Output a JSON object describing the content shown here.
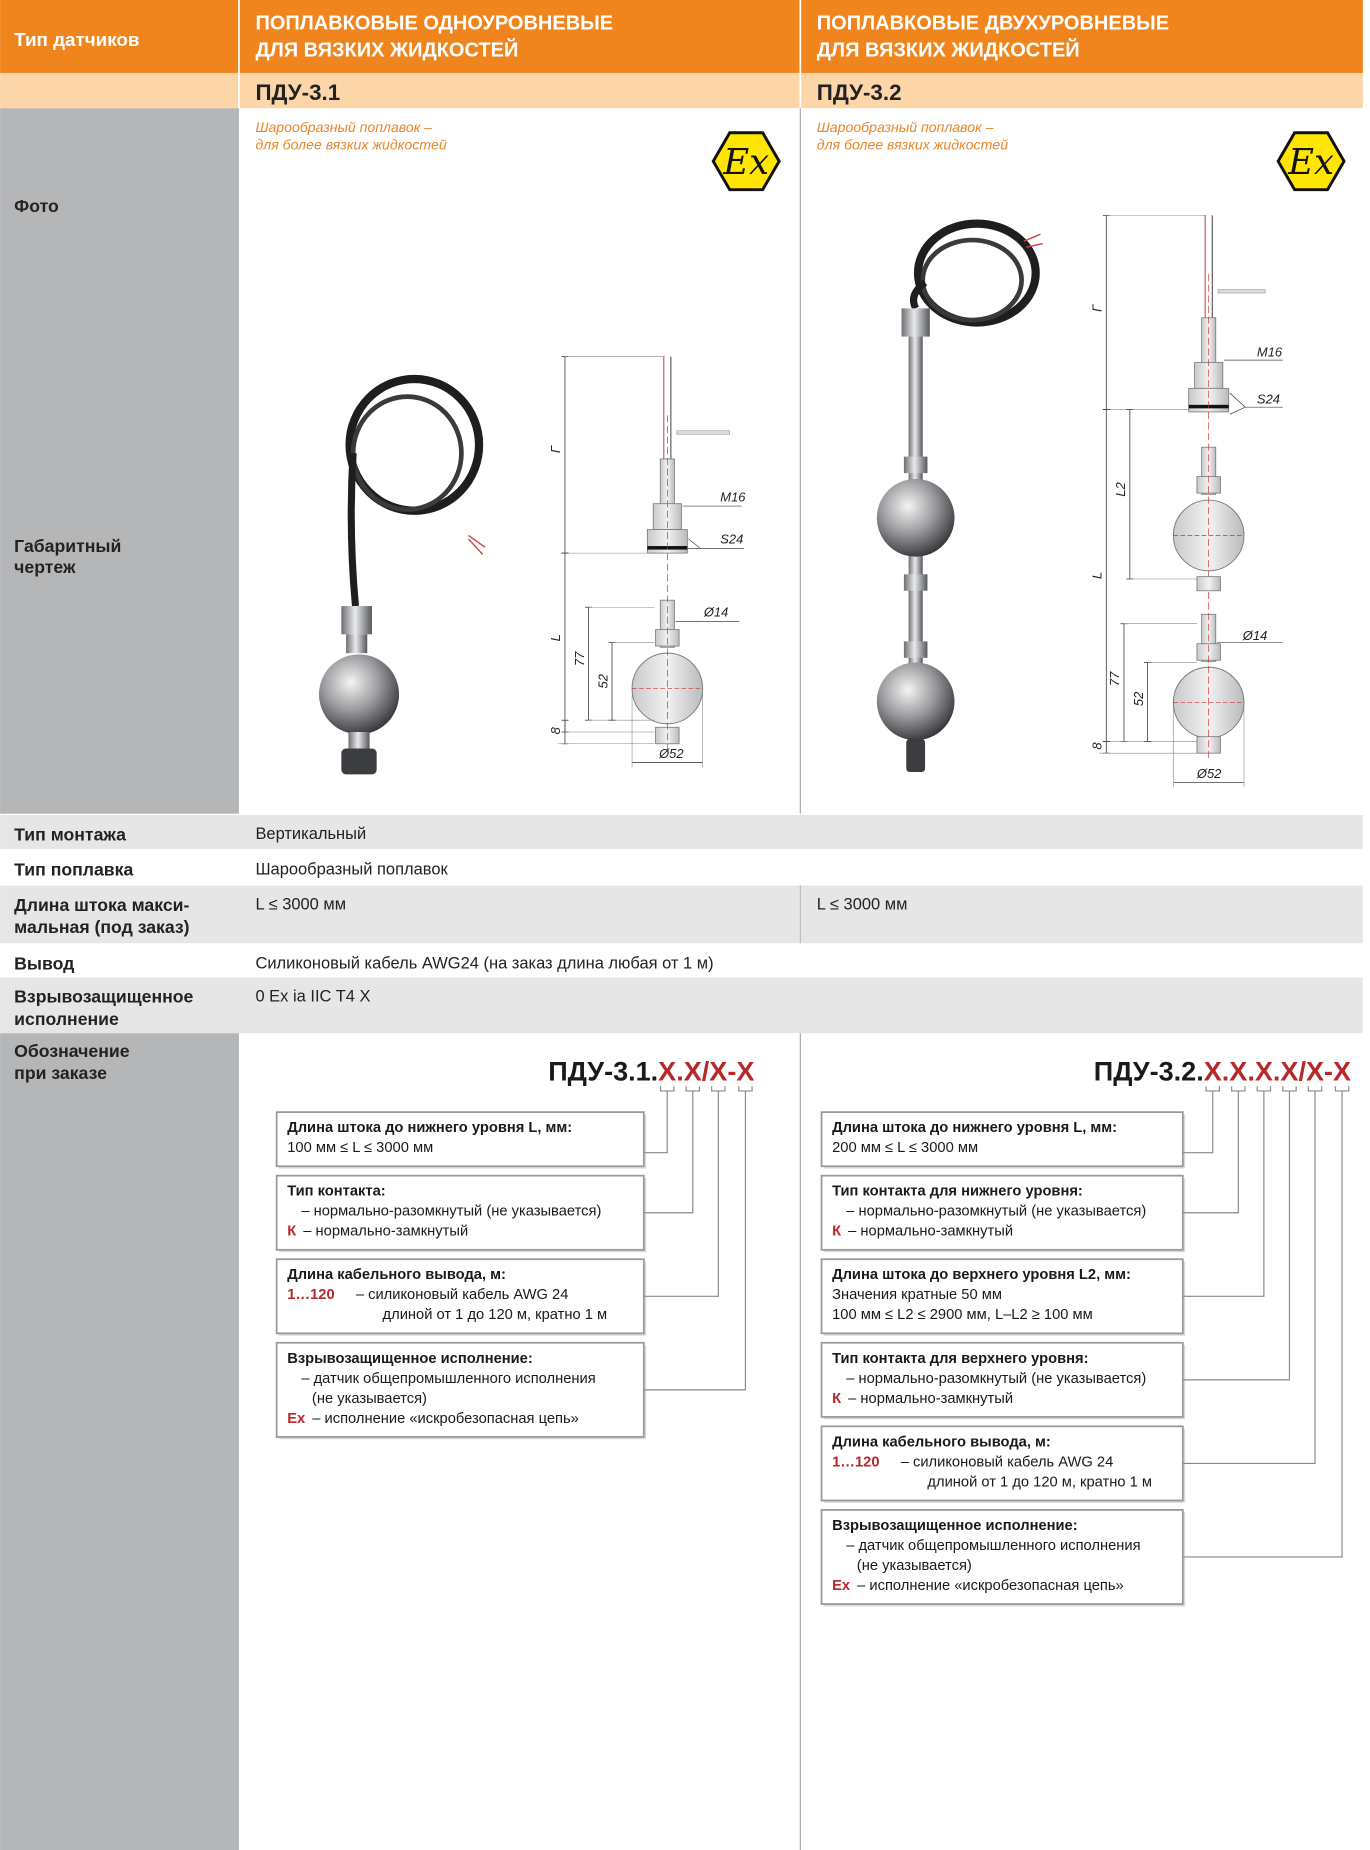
{
  "header": {
    "label": "Тип датчиков",
    "columns": [
      [
        "ПОПЛАВКОВЫЕ ОДНОУРОВНЕВЫЕ",
        "ДЛЯ ВЯЗКИХ ЖИДКОСТЕЙ"
      ],
      [
        "ПОПЛАВКОВЫЕ ДВУХУРОВНЕВЫЕ",
        "ДЛЯ ВЯЗКИХ ЖИДКОСТЕЙ"
      ]
    ]
  },
  "models": [
    "ПДУ-3.1",
    "ПДУ-3.2"
  ],
  "photo_row": {
    "label": "Фото",
    "drawing_label": [
      "Габаритный",
      "чертеж"
    ],
    "notes": [
      [
        "Шарообразный поплавок –",
        "для более вязких жидкостей"
      ],
      [
        "Шарообразный поплавок –",
        "для более вязких жидкостей"
      ]
    ],
    "ex_badge": [
      "Ex",
      "Ex"
    ]
  },
  "drawings": [
    {
      "labels": [
        "Г",
        "M16",
        "S24",
        "L",
        "Ø14",
        "77",
        "52",
        "8",
        "Ø52"
      ]
    },
    {
      "labels": [
        "Г",
        "M16",
        "S24",
        "L2",
        "L",
        "Ø14",
        "77",
        "52",
        "8",
        "Ø52"
      ]
    }
  ],
  "rows": [
    {
      "label": [
        "Тип монтажа"
      ],
      "values": [
        "Вертикальный"
      ]
    },
    {
      "label": [
        "Тип поплавка"
      ],
      "values": [
        "Шарообразный поплавок"
      ]
    },
    {
      "label": [
        "Длина штока макси-",
        "мальная (под заказ)"
      ],
      "values": [
        "L ≤ 3000 мм",
        "L ≤ 3000 мм"
      ]
    },
    {
      "label": [
        "Вывод"
      ],
      "values": [
        "Силиконовый кабель AWG24 (на заказ длина любая от 1 м)"
      ]
    },
    {
      "label": [
        "Взрывозащищенное",
        "исполнение"
      ],
      "values": [
        "0 Ex ia IIC T4 X"
      ]
    }
  ],
  "order": {
    "label": [
      "Обозначение",
      "при заказе"
    ],
    "codes": [
      {
        "prefix": "ПДУ-3.1.",
        "parts": [
          "X",
          ".",
          "X",
          "/",
          "X",
          "-",
          "X"
        ],
        "boxes": [
          {
            "title": "Длина штока до нижнего уровня L, мм:",
            "lines": [
              {
                "text": "100 мм ≤ L ≤ 3000 мм"
              }
            ]
          },
          {
            "title": "Тип контакта:",
            "lines": [
              {
                "text": "– нормально-разомкнутый (не указывается)"
              },
              {
                "key": "К",
                "text": "– нормально-замкнутый"
              }
            ]
          },
          {
            "title": "Длина кабельного вывода, м:",
            "lines": [
              {
                "key": "1…120",
                "text": "– силиконовый кабель AWG 24"
              },
              {
                "text": "длиной от 1 до 120 м, кратно 1 м"
              }
            ]
          },
          {
            "title": "Взрывозащищенное исполнение:",
            "lines": [
              {
                "text": "– датчик общепромышленного исполнения"
              },
              {
                "text": "(не указывается)"
              },
              {
                "key": "Ex",
                "text": "– исполнение «искробезопасная цепь»"
              }
            ]
          }
        ]
      },
      {
        "prefix": "ПДУ-3.2.",
        "parts": [
          "X",
          ".",
          "X",
          ".",
          "X",
          ".",
          "X",
          "/",
          "X",
          "-",
          "X"
        ],
        "boxes": [
          {
            "title": "Длина штока до нижнего уровня L, мм:",
            "lines": [
              {
                "text": "200 мм ≤ L ≤ 3000 мм"
              }
            ]
          },
          {
            "title": "Тип контакта для нижнего уровня:",
            "lines": [
              {
                "text": "– нормально-разомкнутый (не указывается)"
              },
              {
                "key": "К",
                "text": "– нормально-замкнутый"
              }
            ]
          },
          {
            "title": "Длина штока до верхнего уровня L2, мм:",
            "lines": [
              {
                "text": "Значения кратные 50 мм"
              },
              {
                "text": "100 мм ≤ L2 ≤ 2900 мм,  L–L2 ≥ 100 мм"
              }
            ]
          },
          {
            "title": "Тип контакта для верхнего уровня:",
            "lines": [
              {
                "text": "– нормально-разомкнутый (не указывается)"
              },
              {
                "key": "К",
                "text": "– нормально-замкнутый"
              }
            ]
          },
          {
            "title": "Длина кабельного вывода, м:",
            "lines": [
              {
                "key": "1…120",
                "text": "– силиконовый кабель AWG 24"
              },
              {
                "text": "длиной от 1 до 120 м, кратно 1 м"
              }
            ]
          },
          {
            "title": "Взрывозащищенное исполнение:",
            "lines": [
              {
                "text": "– датчик общепромышленного исполнения"
              },
              {
                "text": "(не указывается)"
              },
              {
                "key": "Ex",
                "text": "– исполнение «искробезопасная цепь»"
              }
            ]
          }
        ]
      }
    ]
  }
}
